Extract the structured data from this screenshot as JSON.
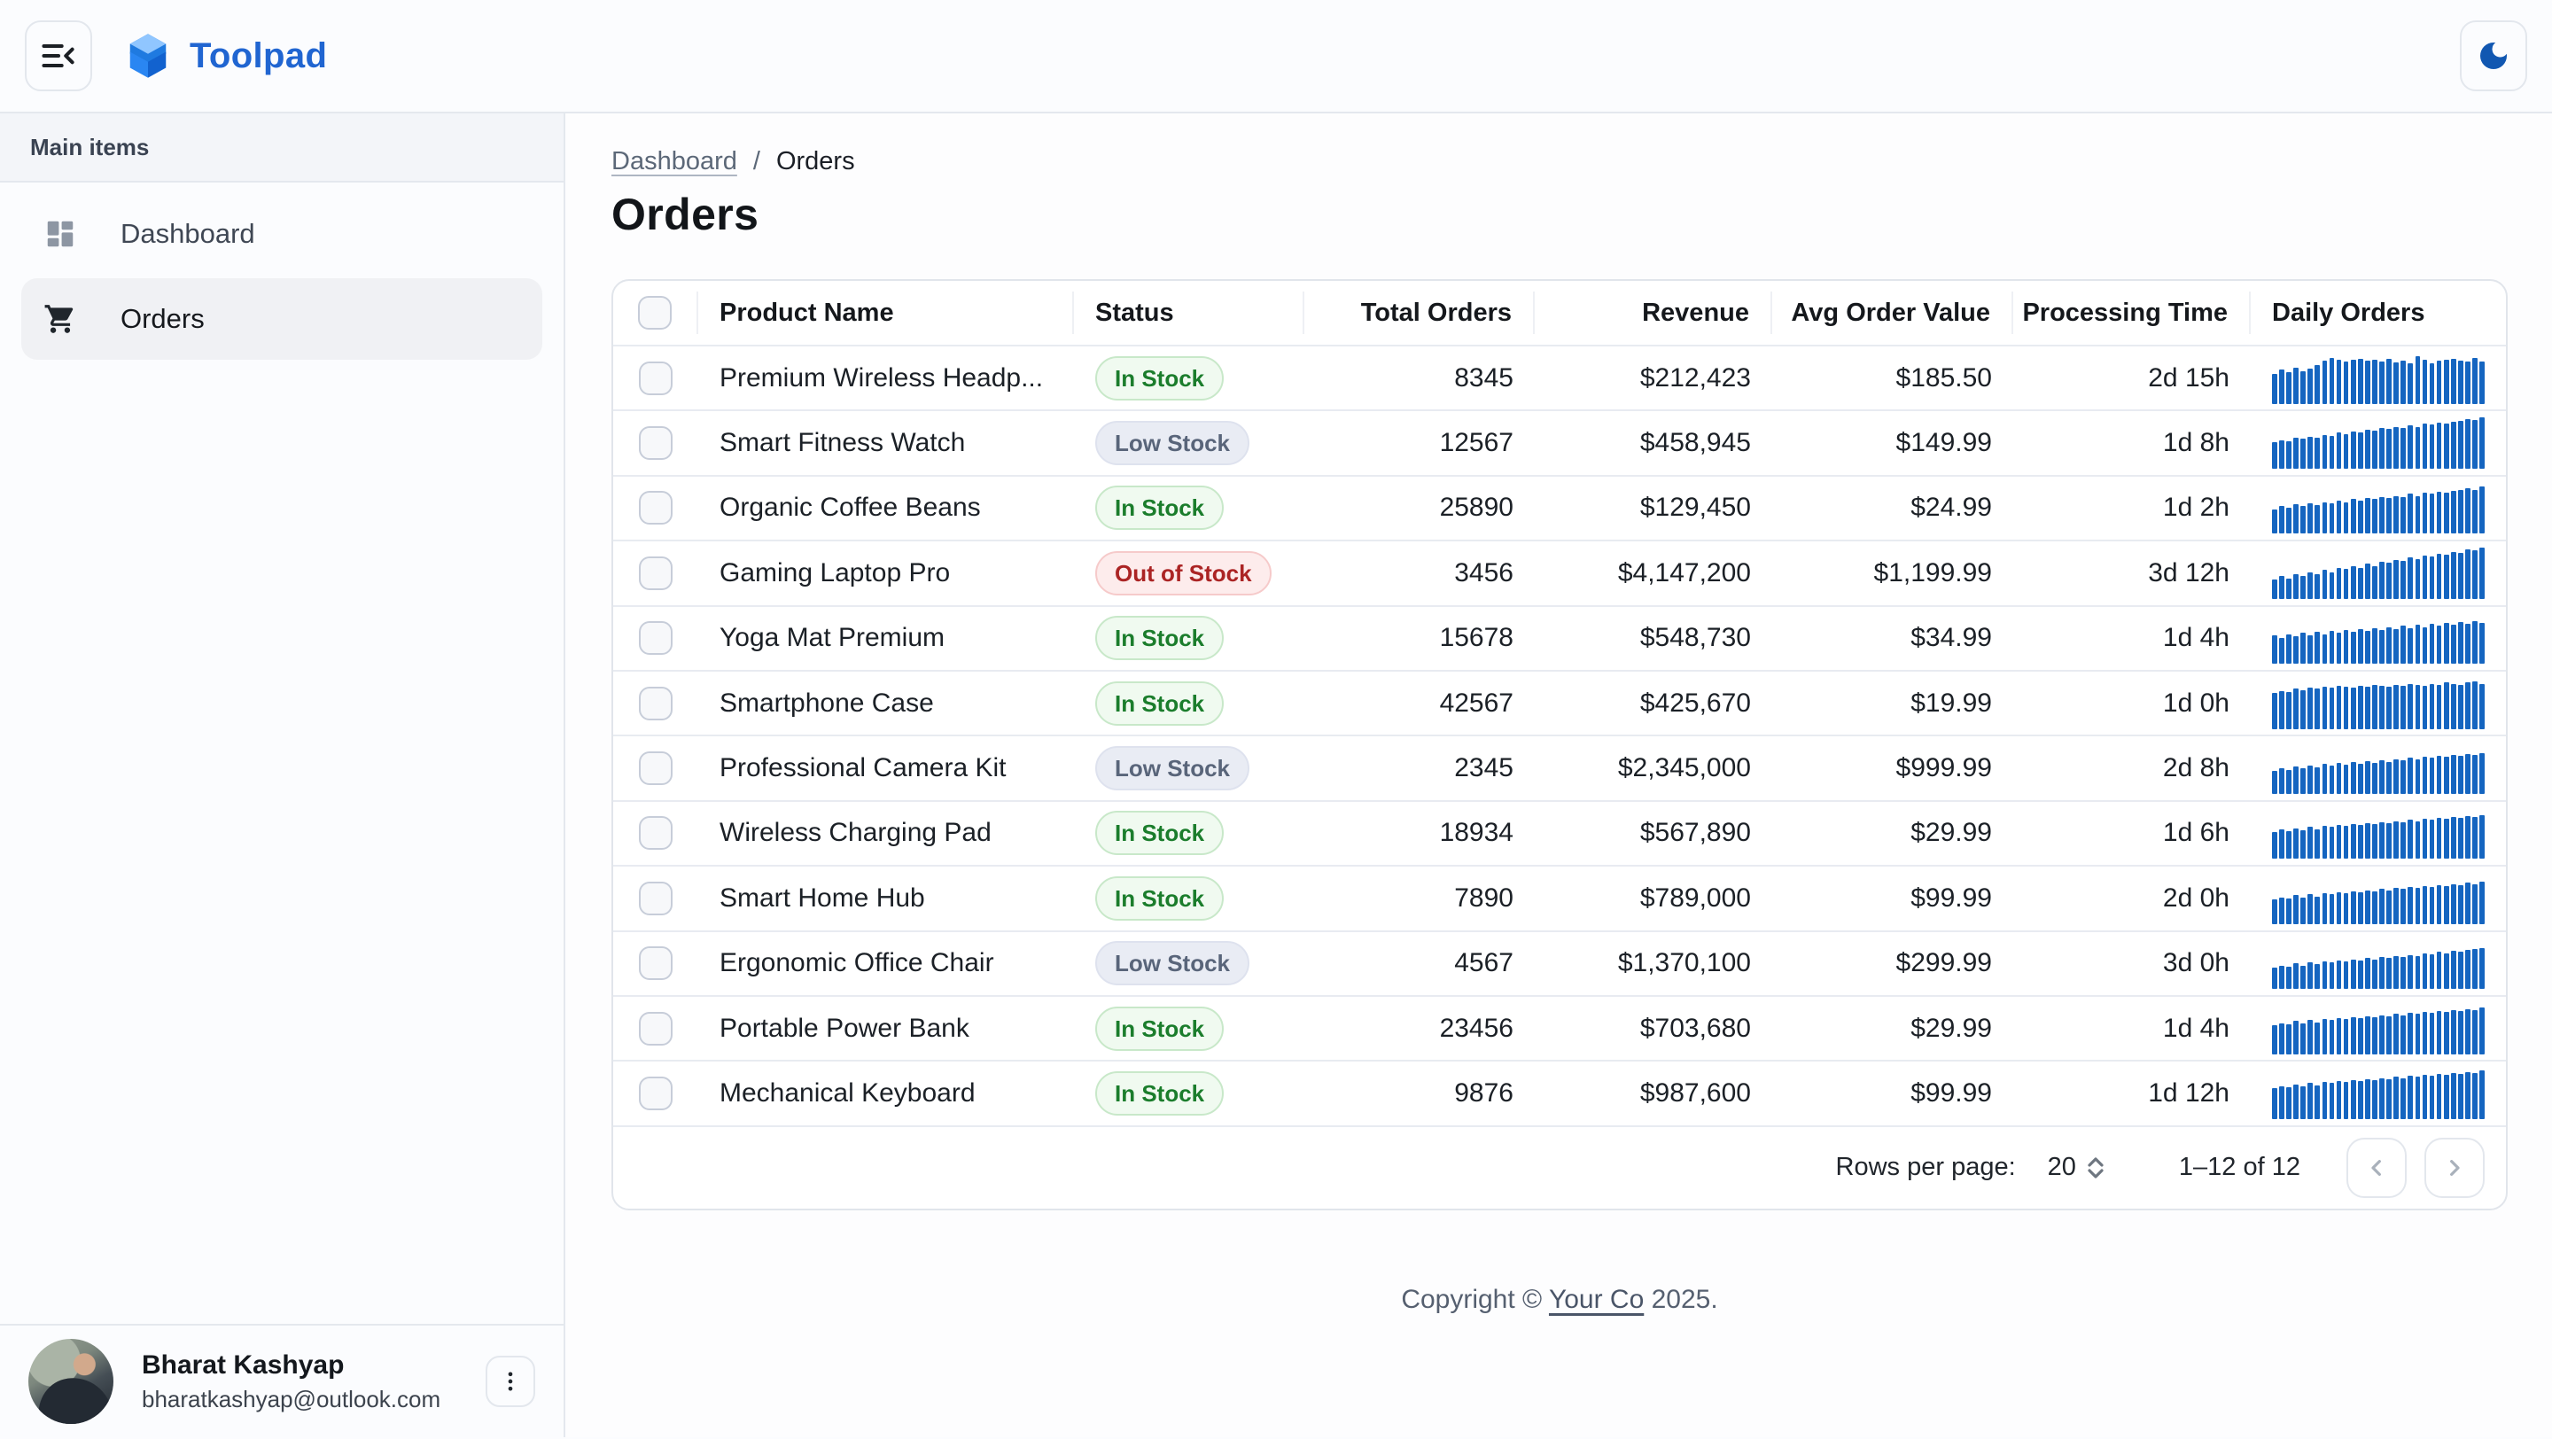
{
  "header": {
    "app_name": "Toolpad"
  },
  "sidebar": {
    "section_label": "Main items",
    "items": [
      {
        "label": "Dashboard",
        "icon": "dashboard-icon",
        "selected": false
      },
      {
        "label": "Orders",
        "icon": "cart-icon",
        "selected": true
      }
    ],
    "user": {
      "name": "Bharat Kashyap",
      "email": "bharatkashyap@outlook.com"
    }
  },
  "breadcrumb": {
    "parent": "Dashboard",
    "separator": "/",
    "current": "Orders"
  },
  "page": {
    "title": "Orders"
  },
  "table": {
    "columns": [
      "Product Name",
      "Status",
      "Total Orders",
      "Revenue",
      "Avg Order Value",
      "Processing Time",
      "Daily Orders"
    ],
    "rows": [
      {
        "product": "Premium Wireless Headp...",
        "status": "In Stock",
        "status_variant": "in",
        "total_orders": "8345",
        "revenue": "$212,423",
        "avg_order_value": "$185.50",
        "processing_time": "2d 15h",
        "daily_orders": [
          58,
          66,
          62,
          70,
          64,
          68,
          76,
          84,
          90,
          86,
          82,
          86,
          88,
          84,
          86,
          82,
          88,
          80,
          84,
          78,
          92,
          86,
          78,
          84,
          86,
          88,
          84,
          82,
          90,
          82
        ]
      },
      {
        "product": "Smart Fitness Watch",
        "status": "Low Stock",
        "status_variant": "low",
        "total_orders": "12567",
        "revenue": "$458,945",
        "avg_order_value": "$149.99",
        "processing_time": "1d 8h",
        "daily_orders": [
          52,
          56,
          54,
          60,
          58,
          62,
          60,
          66,
          64,
          70,
          68,
          72,
          70,
          76,
          74,
          80,
          78,
          82,
          80,
          84,
          82,
          88,
          86,
          90,
          88,
          92,
          94,
          96,
          95,
          100
        ]
      },
      {
        "product": "Organic Coffee Beans",
        "status": "In Stock",
        "status_variant": "in",
        "total_orders": "25890",
        "revenue": "$129,450",
        "avg_order_value": "$24.99",
        "processing_time": "1d 2h",
        "daily_orders": [
          48,
          54,
          50,
          58,
          54,
          60,
          56,
          62,
          60,
          64,
          62,
          68,
          64,
          70,
          68,
          72,
          70,
          74,
          72,
          78,
          74,
          80,
          78,
          82,
          80,
          84,
          86,
          88,
          86,
          92
        ]
      },
      {
        "product": "Gaming Laptop Pro",
        "status": "Out of Stock",
        "status_variant": "out",
        "total_orders": "3456",
        "revenue": "$4,147,200",
        "avg_order_value": "$1,199.99",
        "processing_time": "3d 12h",
        "daily_orders": [
          38,
          44,
          40,
          48,
          44,
          52,
          48,
          56,
          52,
          60,
          58,
          64,
          60,
          68,
          64,
          72,
          70,
          76,
          74,
          80,
          78,
          84,
          82,
          88,
          86,
          92,
          90,
          96,
          94,
          100
        ]
      },
      {
        "product": "Yoga Mat Premium",
        "status": "In Stock",
        "status_variant": "in",
        "total_orders": "15678",
        "revenue": "$548,730",
        "avg_order_value": "$34.99",
        "processing_time": "1d 4h",
        "daily_orders": [
          55,
          50,
          58,
          54,
          60,
          56,
          62,
          58,
          64,
          60,
          66,
          62,
          68,
          64,
          70,
          66,
          72,
          68,
          74,
          70,
          76,
          72,
          78,
          74,
          80,
          76,
          82,
          78,
          84,
          80
        ]
      },
      {
        "product": "Smartphone Case",
        "status": "In Stock",
        "status_variant": "in",
        "total_orders": "42567",
        "revenue": "$425,670",
        "avg_order_value": "$19.99",
        "processing_time": "1d 0h",
        "daily_orders": [
          70,
          74,
          72,
          78,
          76,
          80,
          78,
          82,
          80,
          84,
          82,
          80,
          84,
          82,
          86,
          84,
          82,
          86,
          84,
          88,
          86,
          84,
          88,
          86,
          90,
          88,
          86,
          90,
          92,
          88
        ]
      },
      {
        "product": "Professional Camera Kit",
        "status": "Low Stock",
        "status_variant": "low",
        "total_orders": "2345",
        "revenue": "$2,345,000",
        "avg_order_value": "$999.99",
        "processing_time": "2d 8h",
        "daily_orders": [
          45,
          50,
          47,
          53,
          50,
          56,
          52,
          58,
          55,
          60,
          57,
          62,
          59,
          64,
          61,
          66,
          63,
          68,
          65,
          70,
          68,
          72,
          70,
          74,
          72,
          76,
          74,
          78,
          76,
          80
        ]
      },
      {
        "product": "Wireless Charging Pad",
        "status": "In Stock",
        "status_variant": "in",
        "total_orders": "18934",
        "revenue": "$567,890",
        "avg_order_value": "$29.99",
        "processing_time": "1d 6h",
        "daily_orders": [
          52,
          58,
          54,
          60,
          56,
          62,
          58,
          64,
          62,
          66,
          64,
          68,
          66,
          70,
          68,
          72,
          70,
          74,
          72,
          76,
          74,
          78,
          76,
          80,
          78,
          82,
          80,
          84,
          82,
          86
        ]
      },
      {
        "product": "Smart Home Hub",
        "status": "In Stock",
        "status_variant": "in",
        "total_orders": "7890",
        "revenue": "$789,000",
        "avg_order_value": "$99.99",
        "processing_time": "2d 0h",
        "daily_orders": [
          48,
          52,
          50,
          56,
          52,
          58,
          54,
          60,
          58,
          62,
          60,
          64,
          62,
          66,
          64,
          68,
          66,
          70,
          68,
          72,
          70,
          74,
          72,
          76,
          74,
          78,
          76,
          80,
          78,
          82
        ]
      },
      {
        "product": "Ergonomic Office Chair",
        "status": "Low Stock",
        "status_variant": "low",
        "total_orders": "4567",
        "revenue": "$1,370,100",
        "avg_order_value": "$299.99",
        "processing_time": "3d 0h",
        "daily_orders": [
          42,
          46,
          44,
          50,
          46,
          52,
          48,
          54,
          52,
          56,
          54,
          58,
          56,
          60,
          58,
          62,
          60,
          64,
          62,
          66,
          64,
          70,
          68,
          72,
          70,
          74,
          72,
          76,
          78,
          80
        ]
      },
      {
        "product": "Portable Power Bank",
        "status": "In Stock",
        "status_variant": "in",
        "total_orders": "23456",
        "revenue": "$703,680",
        "avg_order_value": "$29.99",
        "processing_time": "1d 4h",
        "daily_orders": [
          56,
          60,
          58,
          64,
          60,
          66,
          62,
          68,
          66,
          70,
          68,
          72,
          70,
          74,
          72,
          76,
          74,
          78,
          76,
          80,
          78,
          82,
          80,
          84,
          82,
          86,
          84,
          88,
          86,
          90
        ]
      },
      {
        "product": "Mechanical Keyboard",
        "status": "In Stock",
        "status_variant": "in",
        "total_orders": "9876",
        "revenue": "$987,600",
        "avg_order_value": "$99.99",
        "processing_time": "1d 12h",
        "daily_orders": [
          60,
          64,
          62,
          68,
          64,
          70,
          66,
          72,
          70,
          74,
          72,
          76,
          74,
          78,
          76,
          80,
          78,
          82,
          80,
          84,
          82,
          86,
          84,
          88,
          86,
          90,
          88,
          92,
          90,
          94
        ]
      }
    ]
  },
  "pagination": {
    "rows_per_page_label": "Rows per page:",
    "rows_per_page": "20",
    "range": "1–12 of 12"
  },
  "footer": {
    "prefix": "Copyright © ",
    "link": "Your Co",
    "suffix": " 2025."
  },
  "colors": {
    "accent": "#2065d1",
    "sparkline": "#1565c0",
    "status_in_stock": "#1b7d2c",
    "status_low_stock": "#59657a",
    "status_out_of_stock": "#ab2424"
  }
}
